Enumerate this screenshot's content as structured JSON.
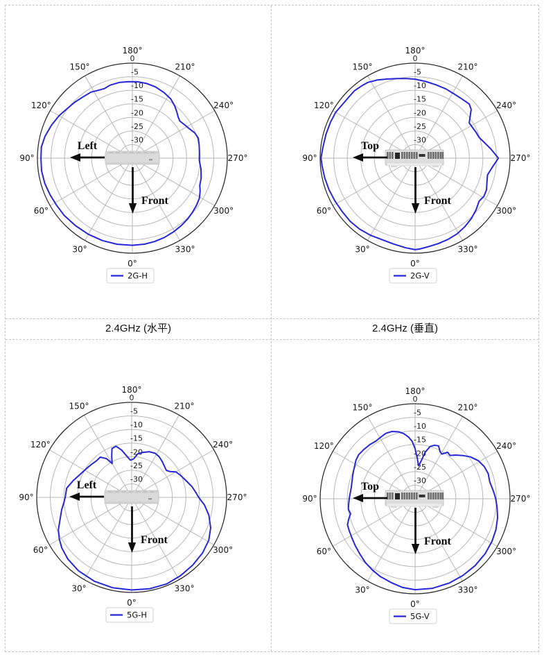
{
  "captions": {
    "left": "2.4GHz (水平)",
    "right": "2.4GHz (垂直)"
  },
  "colors": {
    "curve": "#2626d9",
    "grid": "#b7b7b7",
    "outer_ring": "#2e2e2e",
    "text": "#141414",
    "arrow": "#0d0d0d",
    "table_border": "#c6c6c6",
    "legend_border": "#d0d0d0",
    "device_body": "#dedede",
    "device_slot": "#6e6e6e"
  },
  "chart_data": {
    "type": "polar-line",
    "axis": {
      "angle_ticks_deg": [
        0,
        30,
        60,
        90,
        120,
        150,
        180,
        210,
        240,
        270,
        300,
        330
      ],
      "angle_tick_labels": [
        "0°",
        "30°",
        "60°",
        "90°",
        "120°",
        "150°",
        "180°",
        "210°",
        "240°",
        "270°",
        "300°",
        "330°"
      ],
      "radial_ticks_db": [
        0,
        -5,
        -10,
        -15,
        -20,
        -25,
        -30
      ],
      "radial_range_db": [
        -35,
        0
      ],
      "units": "dB",
      "orientation": "0 deg at bottom, angles increase clockwise (90 deg at left)",
      "grid": true,
      "legend_position": "below plot, centered"
    },
    "charts": [
      {
        "legend": "2G-H",
        "device_view": "top",
        "arrow_labels": {
          "horizontal": "Left",
          "vertical": "Front"
        },
        "points": [
          [
            0,
            -2.9
          ],
          [
            10,
            -2.8
          ],
          [
            20,
            -2.7
          ],
          [
            30,
            -2.6
          ],
          [
            40,
            -2.5
          ],
          [
            50,
            -2.2
          ],
          [
            58,
            -2.1
          ],
          [
            66,
            -1.8
          ],
          [
            74,
            -1.4
          ],
          [
            82,
            -1.2
          ],
          [
            90,
            -1.3
          ],
          [
            97,
            -1.2
          ],
          [
            104,
            -1.8
          ],
          [
            112,
            -2.8
          ],
          [
            120,
            -3.8
          ],
          [
            127,
            -4.8
          ],
          [
            134,
            -5.4
          ],
          [
            141,
            -6.0
          ],
          [
            148,
            -6.3
          ],
          [
            153,
            -7.0
          ],
          [
            158,
            -7.4
          ],
          [
            163,
            -6.9
          ],
          [
            170,
            -6.7
          ],
          [
            177,
            -6.8
          ],
          [
            184,
            -6.8
          ],
          [
            191,
            -7.0
          ],
          [
            198,
            -7.4
          ],
          [
            206,
            -8.2
          ],
          [
            213,
            -9.0
          ],
          [
            219,
            -10.2
          ],
          [
            224,
            -11.4
          ],
          [
            228,
            -12.3
          ],
          [
            232,
            -12.8
          ],
          [
            237,
            -12.2
          ],
          [
            242,
            -11.5
          ],
          [
            248,
            -10.2
          ],
          [
            253,
            -9.6
          ],
          [
            259,
            -9.9
          ],
          [
            266,
            -10.2
          ],
          [
            272,
            -10.3
          ],
          [
            279,
            -9.4
          ],
          [
            286,
            -8.6
          ],
          [
            292,
            -8.2
          ],
          [
            296,
            -7.2
          ],
          [
            301,
            -6.2
          ],
          [
            306,
            -5.7
          ],
          [
            312,
            -5.2
          ],
          [
            318,
            -4.7
          ],
          [
            324,
            -4.3
          ],
          [
            331,
            -3.9
          ],
          [
            338,
            -3.5
          ],
          [
            345,
            -3.2
          ],
          [
            352,
            -3.0
          ]
        ]
      },
      {
        "legend": "2G-V",
        "device_view": "rear",
        "arrow_labels": {
          "horizontal": "Top",
          "vertical": "Front"
        },
        "points": [
          [
            0,
            -1.3
          ],
          [
            6,
            -1.8
          ],
          [
            14,
            -2.4
          ],
          [
            22,
            -2.6
          ],
          [
            30,
            -2.2
          ],
          [
            38,
            -1.8
          ],
          [
            46,
            -1.6
          ],
          [
            54,
            -1.7
          ],
          [
            62,
            -1.5
          ],
          [
            70,
            -1.2
          ],
          [
            78,
            -0.9
          ],
          [
            85,
            -0.6
          ],
          [
            90,
            -0.3
          ],
          [
            97,
            -0.8
          ],
          [
            105,
            -1.0
          ],
          [
            113,
            -1.1
          ],
          [
            120,
            -1.2
          ],
          [
            126,
            -1.7
          ],
          [
            132,
            -1.8
          ],
          [
            138,
            -1.6
          ],
          [
            144,
            -1.9
          ],
          [
            148,
            -2.1
          ],
          [
            154,
            -3.0
          ],
          [
            160,
            -4.0
          ],
          [
            167,
            -4.9
          ],
          [
            174,
            -5.5
          ],
          [
            180,
            -5.9
          ],
          [
            188,
            -6.5
          ],
          [
            196,
            -6.9
          ],
          [
            204,
            -7.1
          ],
          [
            211,
            -7.3
          ],
          [
            218,
            -7.2
          ],
          [
            225,
            -6.8
          ],
          [
            229,
            -7.6
          ],
          [
            233,
            -9.6
          ],
          [
            237,
            -11.2
          ],
          [
            242,
            -11.0
          ],
          [
            247,
            -10.6
          ],
          [
            252,
            -10.2
          ],
          [
            257,
            -8.9
          ],
          [
            263,
            -6.9
          ],
          [
            270,
            -4.3
          ],
          [
            277,
            -6.4
          ],
          [
            283,
            -7.6
          ],
          [
            289,
            -7.0
          ],
          [
            294,
            -6.2
          ],
          [
            299,
            -6.0
          ],
          [
            304,
            -6.6
          ],
          [
            310,
            -5.6
          ],
          [
            317,
            -4.6
          ],
          [
            324,
            -3.8
          ],
          [
            331,
            -3.1
          ],
          [
            338,
            -2.7
          ],
          [
            345,
            -2.4
          ],
          [
            352,
            -2.0
          ],
          [
            357,
            -1.5
          ]
        ]
      },
      {
        "legend": "5G-H",
        "device_view": "top",
        "arrow_labels": {
          "horizontal": "Left",
          "vertical": "Front"
        },
        "points": [
          [
            0,
            -0.9
          ],
          [
            12,
            -1.0
          ],
          [
            24,
            -1.2
          ],
          [
            36,
            -1.6
          ],
          [
            46,
            -2.3
          ],
          [
            54,
            -3.2
          ],
          [
            60,
            -4.2
          ],
          [
            66,
            -5.4
          ],
          [
            73,
            -7.4
          ],
          [
            80,
            -8.8
          ],
          [
            86,
            -10.0
          ],
          [
            90,
            -10.5
          ],
          [
            98,
            -10.8
          ],
          [
            106,
            -12.6
          ],
          [
            114,
            -14.2
          ],
          [
            122,
            -15.2
          ],
          [
            130,
            -15.9
          ],
          [
            136,
            -16.3
          ],
          [
            142,
            -16.2
          ],
          [
            147,
            -18.0
          ],
          [
            150,
            -20.6
          ],
          [
            154,
            -18.2
          ],
          [
            158,
            -15.6
          ],
          [
            163,
            -15.3
          ],
          [
            168,
            -17.2
          ],
          [
            173,
            -19.6
          ],
          [
            178,
            -21.3
          ],
          [
            183,
            -20.8
          ],
          [
            188,
            -18.8
          ],
          [
            194,
            -17.9
          ],
          [
            201,
            -17.0
          ],
          [
            208,
            -16.6
          ],
          [
            214,
            -16.9
          ],
          [
            220,
            -17.6
          ],
          [
            226,
            -18.3
          ],
          [
            232,
            -18.8
          ],
          [
            236,
            -18.0
          ],
          [
            240,
            -16.2
          ],
          [
            246,
            -15.2
          ],
          [
            253,
            -14.0
          ],
          [
            260,
            -12.4
          ],
          [
            266,
            -11.2
          ],
          [
            270,
            -10.3
          ],
          [
            276,
            -8.0
          ],
          [
            283,
            -5.8
          ],
          [
            291,
            -3.8
          ],
          [
            299,
            -2.5
          ],
          [
            308,
            -1.8
          ],
          [
            318,
            -1.4
          ],
          [
            328,
            -1.0
          ],
          [
            338,
            -0.6
          ],
          [
            349,
            -0.7
          ]
        ]
      },
      {
        "legend": "5G-V",
        "device_view": "rear",
        "arrow_labels": {
          "horizontal": "Top",
          "vertical": "Front"
        },
        "points": [
          [
            0,
            -1.5
          ],
          [
            8,
            -2.0
          ],
          [
            16,
            -2.9
          ],
          [
            24,
            -3.6
          ],
          [
            31,
            -4.4
          ],
          [
            38,
            -5.2
          ],
          [
            45,
            -6.2
          ],
          [
            52,
            -7.0
          ],
          [
            58,
            -7.6
          ],
          [
            64,
            -8.0
          ],
          [
            69,
            -8.3
          ],
          [
            73,
            -9.4
          ],
          [
            77,
            -10.6
          ],
          [
            81,
            -10.1
          ],
          [
            85,
            -10.4
          ],
          [
            90,
            -10.7
          ],
          [
            95,
            -11.0
          ],
          [
            100,
            -11.1
          ],
          [
            105,
            -10.9
          ],
          [
            110,
            -10.5
          ],
          [
            114,
            -10.1
          ],
          [
            118,
            -9.7
          ],
          [
            123,
            -9.0
          ],
          [
            128,
            -8.6
          ],
          [
            134,
            -8.8
          ],
          [
            140,
            -9.0
          ],
          [
            146,
            -9.3
          ],
          [
            151,
            -9.0
          ],
          [
            156,
            -8.6
          ],
          [
            161,
            -8.8
          ],
          [
            166,
            -9.6
          ],
          [
            170,
            -10.6
          ],
          [
            174,
            -12.2
          ],
          [
            177,
            -13.8
          ],
          [
            180,
            -16.5
          ],
          [
            183,
            -20.0
          ],
          [
            186,
            -22.8
          ],
          [
            189,
            -21.0
          ],
          [
            192,
            -17.6
          ],
          [
            196,
            -15.0
          ],
          [
            200,
            -14.0
          ],
          [
            204,
            -13.7
          ],
          [
            208,
            -15.4
          ],
          [
            211,
            -15.8
          ],
          [
            215,
            -14.1
          ],
          [
            219,
            -14.5
          ],
          [
            223,
            -13.0
          ],
          [
            228,
            -11.2
          ],
          [
            233,
            -9.4
          ],
          [
            239,
            -7.8
          ],
          [
            245,
            -6.9
          ],
          [
            251,
            -6.5
          ],
          [
            257,
            -6.8
          ],
          [
            262,
            -6.3
          ],
          [
            266,
            -5.8
          ],
          [
            270,
            -5.3
          ],
          [
            276,
            -4.6
          ],
          [
            283,
            -3.8
          ],
          [
            291,
            -3.1
          ],
          [
            299,
            -2.6
          ],
          [
            308,
            -2.2
          ],
          [
            318,
            -1.9
          ],
          [
            328,
            -1.7
          ],
          [
            338,
            -1.5
          ],
          [
            349,
            -1.4
          ]
        ]
      }
    ]
  }
}
